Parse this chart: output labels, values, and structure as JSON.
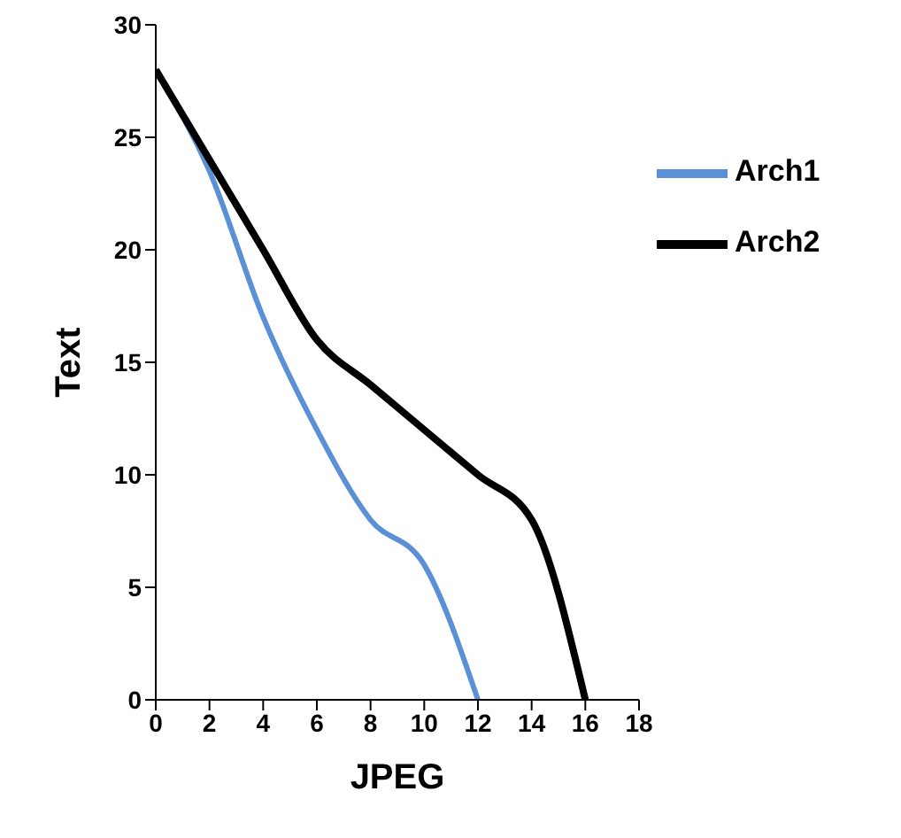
{
  "chart_data": {
    "type": "line",
    "xlabel": "JPEG",
    "ylabel": "Text",
    "x": [
      0,
      2,
      4,
      6,
      8,
      10,
      12,
      14,
      16
    ],
    "series": [
      {
        "name": "Arch1",
        "color": "#5b8fd6",
        "values": [
          28,
          23.5,
          17,
          12,
          8,
          6,
          0,
          null,
          null
        ]
      },
      {
        "name": "Arch2",
        "color": "#000000",
        "values": [
          28,
          24,
          20,
          16,
          14,
          12,
          10,
          8,
          0
        ]
      }
    ],
    "xlim": [
      0,
      18
    ],
    "xticks": [
      0,
      2,
      4,
      6,
      8,
      10,
      12,
      14,
      16,
      18
    ],
    "ylim": [
      0,
      30
    ],
    "yticks": [
      0,
      5,
      10,
      15,
      20,
      25,
      30
    ],
    "grid": false,
    "legend": "top right",
    "marker": "none",
    "line_style": "solid"
  }
}
